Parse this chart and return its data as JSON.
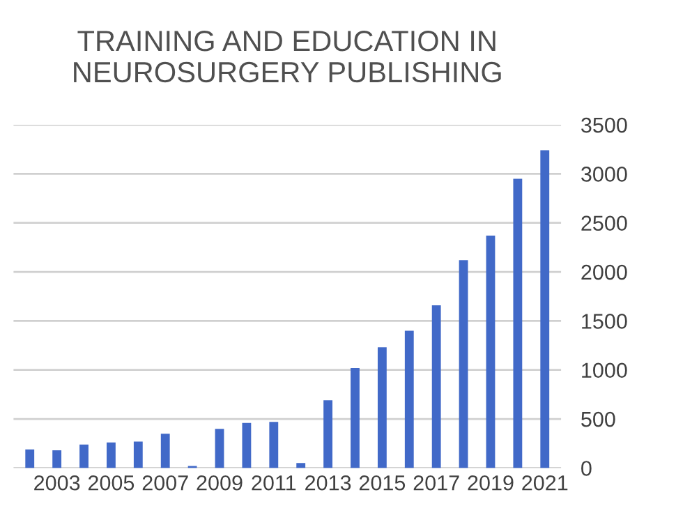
{
  "chart_data": {
    "type": "bar",
    "title": "TRAINING AND EDUCATION IN\nNEUROSURGERY PUBLISHING",
    "categories": [
      null,
      "2003",
      null,
      "2005",
      null,
      "2007",
      null,
      "2009",
      null,
      "2011",
      null,
      "2013",
      null,
      "2015",
      null,
      "2017",
      null,
      "2019",
      null,
      "2021"
    ],
    "series": [
      {
        "color": "#4169c8",
        "values": [
          190,
          180,
          240,
          260,
          270,
          350,
          20,
          400,
          460,
          470,
          50,
          690,
          1020,
          1230,
          1400,
          1660,
          2120,
          2370,
          2950,
          3240
        ]
      }
    ],
    "ylim": [
      0,
      3500
    ],
    "yticks": [
      0,
      500,
      1000,
      1500,
      2000,
      2500,
      3000,
      3500
    ],
    "grid": "y"
  }
}
